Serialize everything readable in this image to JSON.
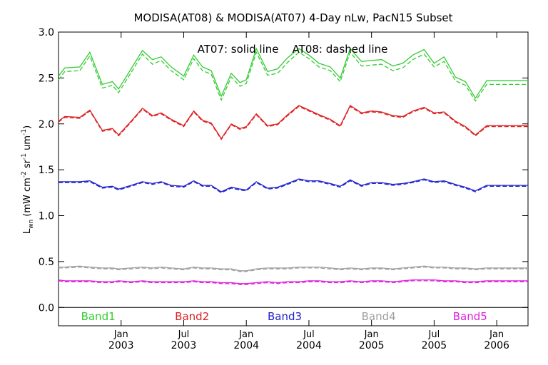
{
  "chart_data": {
    "type": "line",
    "title": "MODISA(AT08) & MODISA(AT07) 4-Day nLw, PacN15 Subset",
    "annotation": "AT07: solid line    AT08: dashed line",
    "ylabel_main": "L",
    "ylabel_sub": "wn",
    "ylabel_units_pre": " (mW cm",
    "ylabel_sup1": "-2",
    "ylabel_units_mid": " sr",
    "ylabel_sup2": "-1",
    "ylabel_units_mid2": " um",
    "ylabel_sup3": "-1",
    "ylabel_units_post": ")",
    "ylim": [
      -0.2,
      3.0
    ],
    "xlim": [
      2002.5,
      2006.25
    ],
    "yticks": [
      0.0,
      0.5,
      1.0,
      1.5,
      2.0,
      2.5,
      3.0
    ],
    "ytick_labels": [
      "0.0",
      "0.5",
      "1.0",
      "1.5",
      "2.0",
      "2.5",
      "3.0"
    ],
    "xticks": [
      {
        "pos": 2003.0,
        "top": "Jan",
        "bottom": "2003"
      },
      {
        "pos": 2003.5,
        "top": "Jul",
        "bottom": "2003"
      },
      {
        "pos": 2004.0,
        "top": "Jan",
        "bottom": "2004"
      },
      {
        "pos": 2004.5,
        "top": "Jul",
        "bottom": "2004"
      },
      {
        "pos": 2005.0,
        "top": "Jan",
        "bottom": "2005"
      },
      {
        "pos": 2005.5,
        "top": "Jul",
        "bottom": "2005"
      },
      {
        "pos": 2006.0,
        "top": "Jan",
        "bottom": "2006"
      }
    ],
    "grid": false,
    "legend_position": "bottom-inside",
    "bands": [
      {
        "label": "Band1",
        "color": "#33cc33",
        "label_x": 2002.68
      },
      {
        "label": "Band2",
        "color": "#dd2222",
        "label_x": 2003.43
      },
      {
        "label": "Band3",
        "color": "#2222cc",
        "label_x": 2004.17
      },
      {
        "label": "Band4",
        "color": "#a0a0a0",
        "label_x": 2004.92
      },
      {
        "label": "Band5",
        "color": "#dd22dd",
        "label_x": 2005.65
      }
    ],
    "x": [
      2002.5,
      2002.55,
      2002.67,
      2002.75,
      2002.85,
      2002.93,
      2002.98,
      2003.08,
      2003.17,
      2003.25,
      2003.32,
      2003.4,
      2003.5,
      2003.58,
      2003.65,
      2003.72,
      2003.8,
      2003.88,
      2003.95,
      2004.0,
      2004.08,
      2004.17,
      2004.25,
      2004.33,
      2004.42,
      2004.5,
      2004.58,
      2004.67,
      2004.75,
      2004.83,
      2004.92,
      2005.0,
      2005.08,
      2005.17,
      2005.25,
      2005.33,
      2005.42,
      2005.5,
      2005.58,
      2005.67,
      2005.75,
      2005.83,
      2005.92,
      2006.0,
      2006.08,
      2006.17,
      2006.25
    ],
    "series": [
      {
        "name": "Band1",
        "style": "solid",
        "values": [
          2.52,
          2.61,
          2.62,
          2.78,
          2.43,
          2.46,
          2.38,
          2.6,
          2.8,
          2.7,
          2.73,
          2.62,
          2.52,
          2.75,
          2.62,
          2.58,
          2.3,
          2.55,
          2.45,
          2.48,
          2.82,
          2.57,
          2.6,
          2.72,
          2.82,
          2.75,
          2.66,
          2.62,
          2.5,
          2.82,
          2.68,
          2.69,
          2.7,
          2.63,
          2.66,
          2.75,
          2.81,
          2.66,
          2.73,
          2.51,
          2.46,
          2.28,
          2.47,
          2.47,
          2.47,
          2.47,
          2.47
        ]
      },
      {
        "name": "Band1",
        "style": "dashed",
        "values": [
          2.48,
          2.57,
          2.58,
          2.74,
          2.39,
          2.42,
          2.34,
          2.56,
          2.76,
          2.65,
          2.69,
          2.58,
          2.48,
          2.71,
          2.58,
          2.54,
          2.26,
          2.51,
          2.41,
          2.44,
          2.78,
          2.53,
          2.55,
          2.67,
          2.78,
          2.71,
          2.62,
          2.58,
          2.46,
          2.78,
          2.63,
          2.64,
          2.65,
          2.58,
          2.61,
          2.7,
          2.76,
          2.62,
          2.68,
          2.47,
          2.42,
          2.25,
          2.43,
          2.43,
          2.43,
          2.43,
          2.43
        ]
      },
      {
        "name": "Band2",
        "style": "solid",
        "values": [
          2.03,
          2.08,
          2.07,
          2.15,
          1.93,
          1.95,
          1.88,
          2.03,
          2.17,
          2.09,
          2.12,
          2.05,
          1.98,
          2.14,
          2.04,
          2.01,
          1.84,
          2.0,
          1.95,
          1.97,
          2.11,
          1.98,
          2.0,
          2.1,
          2.2,
          2.15,
          2.1,
          2.05,
          1.98,
          2.2,
          2.12,
          2.14,
          2.13,
          2.09,
          2.08,
          2.14,
          2.18,
          2.12,
          2.13,
          2.03,
          1.97,
          1.88,
          1.98,
          1.98,
          1.98,
          1.98,
          1.98
        ]
      },
      {
        "name": "Band2",
        "style": "dashed",
        "values": [
          2.02,
          2.07,
          2.06,
          2.14,
          1.92,
          1.94,
          1.87,
          2.02,
          2.16,
          2.08,
          2.11,
          2.04,
          1.97,
          2.13,
          2.03,
          2.0,
          1.83,
          1.99,
          1.94,
          1.96,
          2.1,
          1.97,
          1.99,
          2.09,
          2.19,
          2.14,
          2.09,
          2.04,
          1.97,
          2.19,
          2.11,
          2.13,
          2.12,
          2.08,
          2.07,
          2.13,
          2.17,
          2.11,
          2.12,
          2.02,
          1.96,
          1.87,
          1.97,
          1.97,
          1.97,
          1.97,
          1.97
        ]
      },
      {
        "name": "Band3",
        "style": "solid",
        "values": [
          1.37,
          1.37,
          1.37,
          1.38,
          1.31,
          1.32,
          1.29,
          1.33,
          1.37,
          1.35,
          1.37,
          1.33,
          1.32,
          1.38,
          1.33,
          1.33,
          1.26,
          1.31,
          1.29,
          1.28,
          1.37,
          1.3,
          1.31,
          1.35,
          1.4,
          1.38,
          1.38,
          1.35,
          1.32,
          1.39,
          1.33,
          1.36,
          1.36,
          1.34,
          1.35,
          1.37,
          1.4,
          1.37,
          1.38,
          1.34,
          1.31,
          1.27,
          1.33,
          1.33,
          1.33,
          1.33,
          1.33
        ]
      },
      {
        "name": "Band3",
        "style": "dashed",
        "values": [
          1.36,
          1.36,
          1.36,
          1.37,
          1.3,
          1.31,
          1.28,
          1.32,
          1.36,
          1.34,
          1.36,
          1.32,
          1.31,
          1.37,
          1.32,
          1.32,
          1.25,
          1.3,
          1.28,
          1.27,
          1.36,
          1.29,
          1.3,
          1.34,
          1.39,
          1.37,
          1.37,
          1.34,
          1.31,
          1.38,
          1.32,
          1.35,
          1.35,
          1.33,
          1.34,
          1.36,
          1.39,
          1.36,
          1.37,
          1.33,
          1.3,
          1.26,
          1.32,
          1.32,
          1.32,
          1.32,
          1.32
        ]
      },
      {
        "name": "Band4",
        "style": "solid",
        "values": [
          0.44,
          0.44,
          0.45,
          0.44,
          0.43,
          0.43,
          0.42,
          0.43,
          0.44,
          0.43,
          0.44,
          0.43,
          0.42,
          0.44,
          0.43,
          0.43,
          0.42,
          0.42,
          0.4,
          0.4,
          0.42,
          0.43,
          0.43,
          0.43,
          0.44,
          0.44,
          0.44,
          0.43,
          0.42,
          0.43,
          0.42,
          0.43,
          0.43,
          0.42,
          0.43,
          0.44,
          0.45,
          0.44,
          0.44,
          0.43,
          0.43,
          0.42,
          0.43,
          0.43,
          0.43,
          0.43,
          0.43
        ]
      },
      {
        "name": "Band4",
        "style": "dashed",
        "values": [
          0.43,
          0.43,
          0.44,
          0.43,
          0.42,
          0.42,
          0.41,
          0.42,
          0.43,
          0.42,
          0.43,
          0.42,
          0.41,
          0.43,
          0.42,
          0.42,
          0.41,
          0.41,
          0.39,
          0.39,
          0.41,
          0.42,
          0.42,
          0.42,
          0.43,
          0.43,
          0.43,
          0.42,
          0.41,
          0.42,
          0.41,
          0.42,
          0.42,
          0.41,
          0.42,
          0.43,
          0.44,
          0.43,
          0.43,
          0.42,
          0.42,
          0.41,
          0.42,
          0.42,
          0.42,
          0.42,
          0.42
        ]
      },
      {
        "name": "Band5",
        "style": "solid",
        "values": [
          0.3,
          0.29,
          0.29,
          0.29,
          0.28,
          0.28,
          0.29,
          0.28,
          0.29,
          0.28,
          0.28,
          0.28,
          0.28,
          0.29,
          0.28,
          0.28,
          0.27,
          0.27,
          0.26,
          0.26,
          0.27,
          0.28,
          0.27,
          0.28,
          0.28,
          0.29,
          0.29,
          0.28,
          0.28,
          0.29,
          0.28,
          0.29,
          0.29,
          0.28,
          0.29,
          0.3,
          0.3,
          0.3,
          0.29,
          0.29,
          0.28,
          0.28,
          0.29,
          0.29,
          0.29,
          0.29,
          0.29
        ]
      },
      {
        "name": "Band5",
        "style": "dashed",
        "values": [
          0.29,
          0.28,
          0.28,
          0.28,
          0.27,
          0.27,
          0.28,
          0.27,
          0.28,
          0.27,
          0.27,
          0.27,
          0.27,
          0.28,
          0.27,
          0.27,
          0.26,
          0.26,
          0.25,
          0.25,
          0.26,
          0.27,
          0.26,
          0.27,
          0.27,
          0.28,
          0.28,
          0.27,
          0.27,
          0.28,
          0.27,
          0.28,
          0.28,
          0.27,
          0.28,
          0.29,
          0.29,
          0.29,
          0.28,
          0.28,
          0.27,
          0.27,
          0.28,
          0.28,
          0.28,
          0.28,
          0.28
        ]
      }
    ]
  }
}
